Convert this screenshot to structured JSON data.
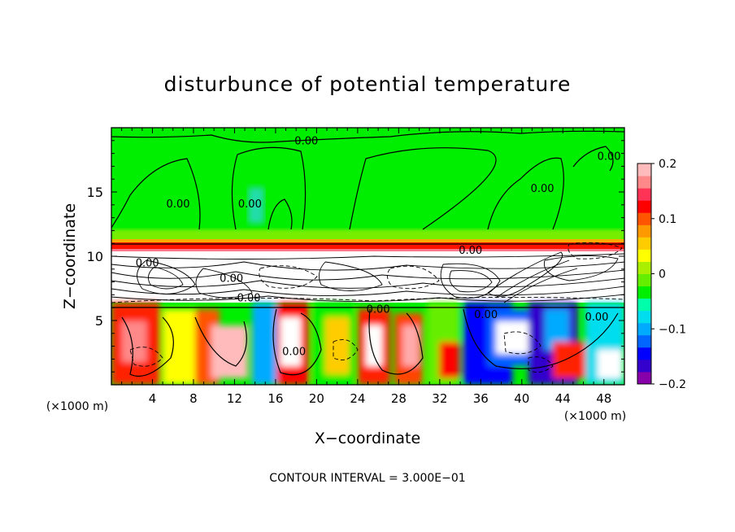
{
  "chart_data": {
    "type": "heatmap",
    "title": "disturbunce of potential temperature",
    "xlabel": "X−coordinate",
    "ylabel": "Z−coordinate",
    "x_unit_left": "(×1000 m)",
    "x_unit_right": "(×1000 m)",
    "xlim": [
      0,
      50
    ],
    "ylim": [
      0,
      20
    ],
    "x_ticks": [
      4,
      8,
      12,
      16,
      20,
      24,
      28,
      32,
      36,
      40,
      44,
      48
    ],
    "y_ticks": [
      5,
      10,
      15
    ],
    "footer": "CONTOUR INTERVAL = 3.000E−01",
    "colorbar": {
      "range": [
        -0.2,
        0.2
      ],
      "tick_labels": [
        {
          "value": 0.2,
          "label": "0.2"
        },
        {
          "value": 0.1,
          "label": "0.1"
        },
        {
          "value": 0.0,
          "label": "0"
        },
        {
          "value": -0.1,
          "label": "−0.1"
        },
        {
          "value": -0.2,
          "label": "−0.2"
        }
      ],
      "colors": [
        "#8800aa",
        "#3300cc",
        "#0000ff",
        "#0066ff",
        "#00aaff",
        "#00ddee",
        "#00ffaa",
        "#00ee00",
        "#66ee00",
        "#aaee00",
        "#ffff00",
        "#ffcc00",
        "#ff9900",
        "#ff5500",
        "#ff0000",
        "#ff3355",
        "#ff8888",
        "#ffbbbb"
      ]
    },
    "contour_labels": [
      {
        "x": 19,
        "z": 18.7,
        "text": "0.00"
      },
      {
        "x": 6.5,
        "z": 13.8,
        "text": "0.00"
      },
      {
        "x": 13.5,
        "z": 13.8,
        "text": "0.00"
      },
      {
        "x": 42,
        "z": 15.0,
        "text": "0.00"
      },
      {
        "x": 48.5,
        "z": 17.5,
        "text": "0.00"
      },
      {
        "x": 35,
        "z": 10.2,
        "text": "0.00"
      },
      {
        "x": 3.5,
        "z": 9.2,
        "text": "0.00"
      },
      {
        "x": 11.7,
        "z": 8.0,
        "text": "0.00"
      },
      {
        "x": 13.4,
        "z": 6.5,
        "text": "0.00"
      },
      {
        "x": 17.8,
        "z": 2.3,
        "text": "0.00"
      },
      {
        "x": 26,
        "z": 5.6,
        "text": "0.00"
      },
      {
        "x": 36.5,
        "z": 5.2,
        "text": "0.00"
      },
      {
        "x": 47.3,
        "z": 5.0,
        "text": "0.00"
      }
    ]
  }
}
